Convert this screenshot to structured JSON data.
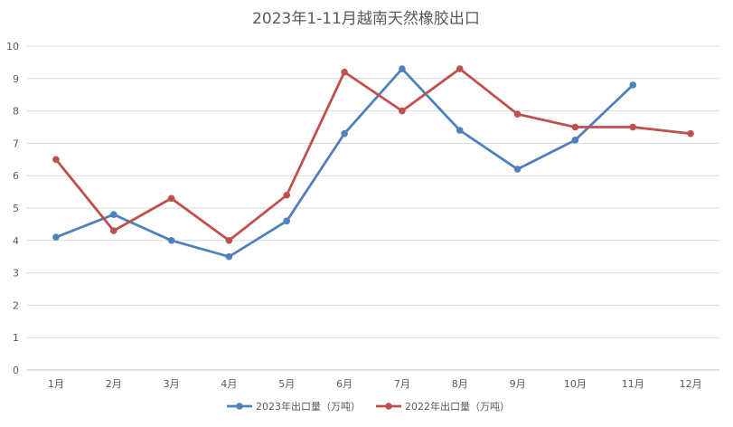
{
  "chart_data": {
    "type": "line",
    "title": "2023年1-11月越南天然橡胶出口",
    "xlabel": "",
    "ylabel": "",
    "categories": [
      "1月",
      "2月",
      "3月",
      "4月",
      "5月",
      "6月",
      "7月",
      "8月",
      "9月",
      "10月",
      "11月",
      "12月"
    ],
    "ylim": [
      0,
      10
    ],
    "yticks": [
      "0",
      "1",
      "2",
      "3",
      "4",
      "5",
      "6",
      "7",
      "8",
      "9",
      "10"
    ],
    "grid": true,
    "legend_position": "bottom",
    "series": [
      {
        "name": "2023年出口量（万吨）",
        "color": "#4f81bd",
        "values": [
          4.1,
          4.8,
          4.0,
          3.5,
          4.6,
          7.3,
          9.3,
          7.4,
          6.2,
          7.1,
          8.8,
          null
        ]
      },
      {
        "name": "2022年出口量（万吨）",
        "color": "#c0504d",
        "values": [
          6.5,
          4.3,
          5.3,
          4.0,
          5.4,
          9.2,
          8.0,
          9.3,
          7.9,
          7.5,
          7.5,
          7.3
        ]
      }
    ]
  }
}
